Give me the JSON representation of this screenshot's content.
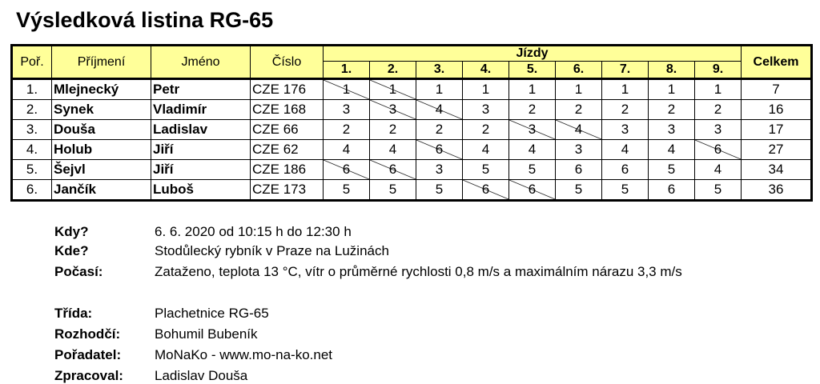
{
  "title": "Výsledková listina RG-65",
  "headers": {
    "rank": "Poř.",
    "surname": "Příjmení",
    "name": "Jméno",
    "number": "Číslo",
    "races": "Jízdy",
    "total": "Celkem",
    "race_labels": [
      "1.",
      "2.",
      "3.",
      "4.",
      "5.",
      "6.",
      "7.",
      "8.",
      "9."
    ]
  },
  "header_color": "#ffff99",
  "rows": [
    {
      "rank": "1.",
      "surname": "Mlejnecký",
      "name": "Petr",
      "number": "CZE 176",
      "races": [
        "1",
        "1",
        "1",
        "1",
        "1",
        "1",
        "1",
        "1",
        "1"
      ],
      "discarded": [
        1,
        2
      ],
      "total": "7"
    },
    {
      "rank": "2.",
      "surname": "Synek",
      "name": "Vladimír",
      "number": "CZE 168",
      "races": [
        "3",
        "3",
        "4",
        "3",
        "2",
        "2",
        "2",
        "2",
        "2"
      ],
      "discarded": [
        2,
        3
      ],
      "total": "16"
    },
    {
      "rank": "3.",
      "surname": "Douša",
      "name": "Ladislav",
      "number": "CZE 66",
      "races": [
        "2",
        "2",
        "2",
        "2",
        "3",
        "4",
        "3",
        "3",
        "3"
      ],
      "discarded": [
        5,
        6
      ],
      "total": "17"
    },
    {
      "rank": "4.",
      "surname": "Holub",
      "name": "Jiří",
      "number": "CZE 62",
      "races": [
        "4",
        "4",
        "6",
        "4",
        "4",
        "3",
        "4",
        "4",
        "6"
      ],
      "discarded": [
        3,
        9
      ],
      "total": "27"
    },
    {
      "rank": "5.",
      "surname": "Šejvl",
      "name": "Jiří",
      "number": "CZE 186",
      "races": [
        "6",
        "6",
        "3",
        "5",
        "5",
        "6",
        "6",
        "5",
        "4"
      ],
      "discarded": [
        1,
        2
      ],
      "total": "34"
    },
    {
      "rank": "6.",
      "surname": "Jančík",
      "name": "Luboš",
      "number": "CZE 173",
      "races": [
        "5",
        "5",
        "5",
        "6",
        "6",
        "5",
        "5",
        "6",
        "5"
      ],
      "discarded": [
        4,
        5
      ],
      "total": "36"
    }
  ],
  "info": [
    {
      "label": "Kdy?",
      "value": "6. 6. 2020 od 10:15 h do 12:30 h"
    },
    {
      "label": "Kde?",
      "value": "Stodůlecký rybník v Praze na Lužinách"
    },
    {
      "label": "Počasí:",
      "value": "Zataženo, teplota 13 °C, vítr o průměrné rychlosti 0,8 m/s a maximálním nárazu 3,3 m/s"
    },
    {
      "label": "Třída:",
      "value": "Plachetnice RG-65"
    },
    {
      "label": "Rozhodčí:",
      "value": "Bohumil Bubeník"
    },
    {
      "label": "Pořadatel:",
      "value": "MoNaKo - www.mo-na-ko.net"
    },
    {
      "label": "Zpracoval:",
      "value": "Ladislav Douša"
    }
  ]
}
